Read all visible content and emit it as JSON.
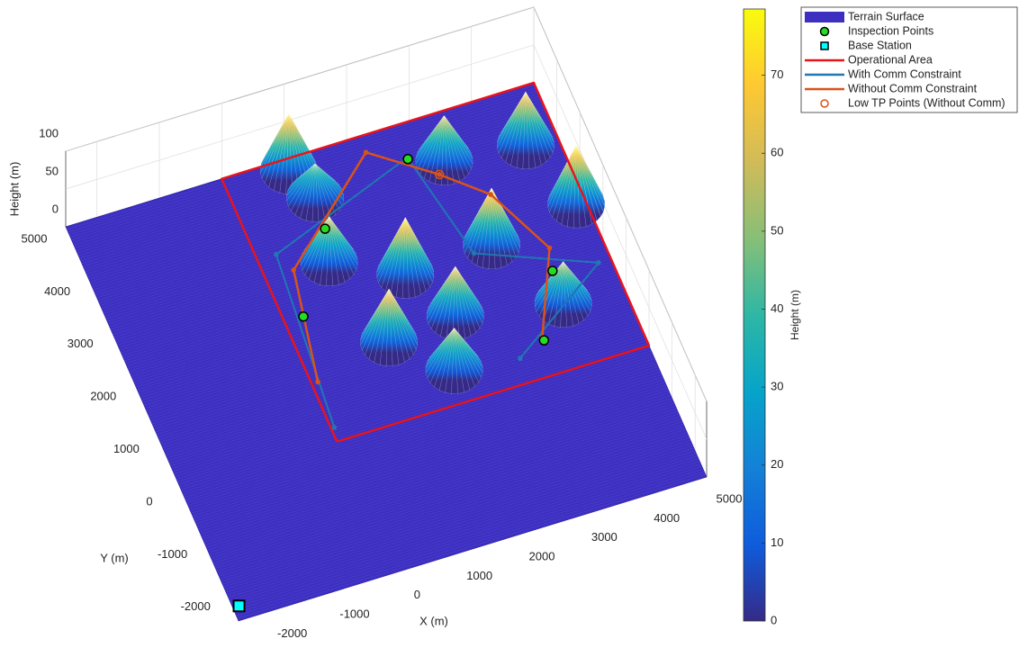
{
  "chart_data": {
    "type": "surface3d",
    "xlabel": "X (m)",
    "ylabel": "Y (m)",
    "zlabel": "Height (m)",
    "xlim": [
      -2500,
      5000
    ],
    "ylim": [
      -2500,
      5000
    ],
    "zlim": [
      0,
      100
    ],
    "xticks": [
      -2000,
      -1000,
      0,
      1000,
      2000,
      3000,
      4000,
      5000
    ],
    "yticks": [
      -2000,
      -1000,
      0,
      1000,
      2000,
      3000,
      4000,
      5000
    ],
    "zticks": [
      0,
      50,
      100
    ],
    "grid": true,
    "colormap": [
      "#352a87",
      "#0f5cdd",
      "#1481d6",
      "#06a4ca",
      "#2eb7a4",
      "#87bf77",
      "#d1bb59",
      "#fec832",
      "#f9fb0e"
    ],
    "colorbar": {
      "label": "Height (m)",
      "clim": [
        0,
        78.5
      ],
      "ticks": [
        0,
        10,
        20,
        30,
        40,
        50,
        60,
        70
      ]
    },
    "terrain": {
      "name": "Terrain Surface",
      "color": "#3d2fbf"
    },
    "hills": [
      {
        "x": 1000,
        "y": 4800,
        "height": 75
      },
      {
        "x": 1200,
        "y": 4200,
        "height": 45
      },
      {
        "x": 3250,
        "y": 4150,
        "height": 60
      },
      {
        "x": 4500,
        "y": 4000,
        "height": 70
      },
      {
        "x": 4850,
        "y": 2750,
        "height": 78
      },
      {
        "x": 3400,
        "y": 2500,
        "height": 75
      },
      {
        "x": 2000,
        "y": 2450,
        "height": 75
      },
      {
        "x": 1000,
        "y": 3050,
        "height": 60
      },
      {
        "x": 1350,
        "y": 1400,
        "height": 70
      },
      {
        "x": 2450,
        "y": 1500,
        "height": 65
      },
      {
        "x": 4050,
        "y": 1150,
        "height": 55
      },
      {
        "x": 2100,
        "y": 600,
        "height": 55
      }
    ],
    "operational_area": {
      "name": "Operational Area",
      "color": "#e8141c",
      "x": [
        0,
        5000,
        5000,
        0,
        0
      ],
      "y": [
        0,
        0,
        5000,
        5000,
        0
      ]
    },
    "series": [
      {
        "name": "With Comm Constraint",
        "color": "#1f77b4",
        "x": [
          50,
          300,
          2750,
          3100,
          4800,
          3100
        ],
        "y": [
          250,
          3450,
          4400,
          2450,
          1650,
          450
        ]
      },
      {
        "name": "Without Comm Constraint",
        "color": "#d95319",
        "x": [
          100,
          450,
          2200,
          3100,
          3700,
          4200,
          3550
        ],
        "y": [
          1100,
          3100,
          4700,
          3950,
          3350,
          2150,
          700
        ]
      }
    ],
    "inspection_points": {
      "name": "Inspection Points",
      "color": "#22dd22",
      "x": [
        2750,
        1150,
        300,
        4100,
        3550
      ],
      "y": [
        4370,
        3630,
        2270,
        1750,
        630
      ]
    },
    "base_station": {
      "name": "Base Station",
      "color": "#00ffff",
      "x": [
        -2400
      ],
      "y": [
        -2250
      ]
    },
    "low_tp_points": {
      "name": "Low TP Points (Without Comm)",
      "color": "#d95319",
      "x": [
        3100
      ],
      "y": [
        3950
      ]
    }
  }
}
